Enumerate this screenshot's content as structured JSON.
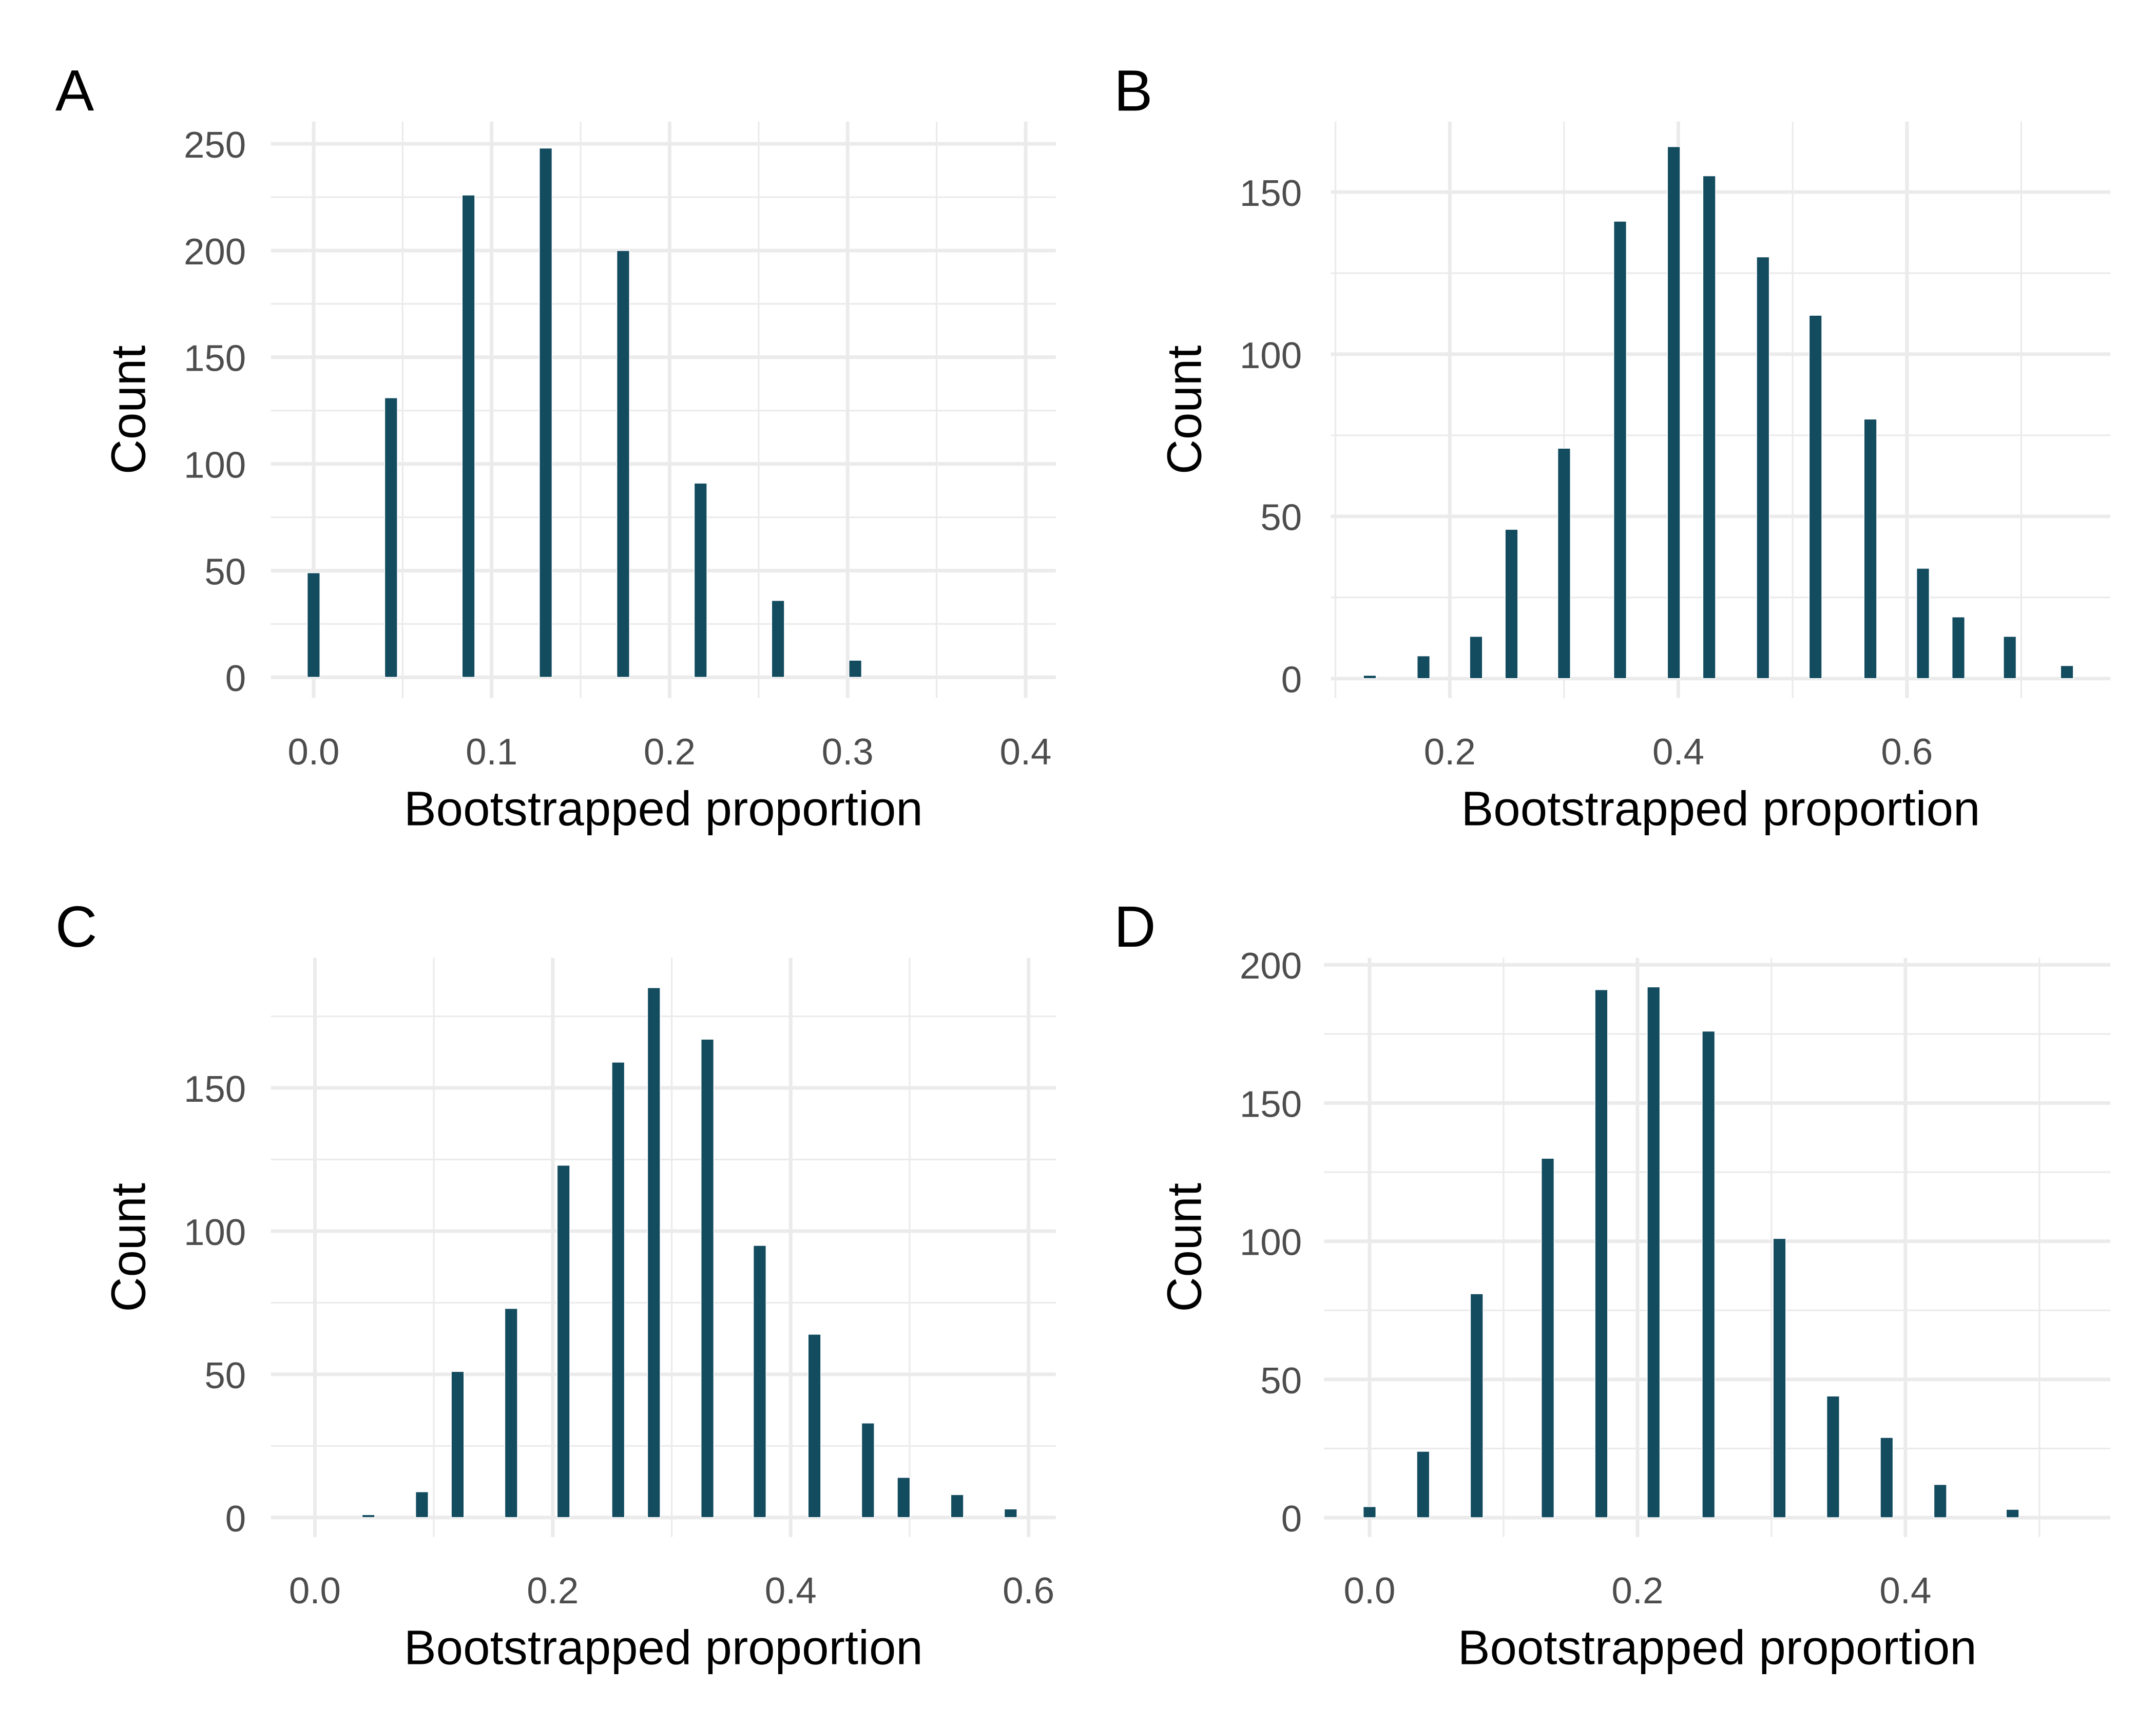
{
  "colors": {
    "bar": "#134b5f",
    "grid": "#ebebeb",
    "tick_text": "#4d4d4d"
  },
  "chart_data": [
    {
      "type": "bar",
      "tag": "A",
      "xlabel": "Bootstrapped proportion",
      "ylabel": "Count",
      "xlim": [
        -0.024,
        0.417
      ],
      "ylim": [
        -9.7,
        260.4
      ],
      "xticks": [
        0.0,
        0.1,
        0.2,
        0.3,
        0.4
      ],
      "xtick_labels": [
        "0.0",
        "0.1",
        "0.2",
        "0.3",
        "0.4"
      ],
      "xminor": [
        0.05,
        0.15,
        0.25,
        0.35
      ],
      "yticks": [
        0,
        50,
        100,
        150,
        200,
        250
      ],
      "ytick_labels": [
        "0",
        "50",
        "100",
        "150",
        "200",
        "250"
      ],
      "yminor": [
        25,
        75,
        125,
        175,
        225
      ],
      "x": [
        0.0,
        0.0435,
        0.087,
        0.1304,
        0.1739,
        0.2174,
        0.2609,
        0.3043
      ],
      "values": [
        49,
        131,
        226,
        248,
        200,
        91,
        36,
        8
      ]
    },
    {
      "type": "bar",
      "tag": "B",
      "xlabel": "Bootstrapped proportion",
      "ylabel": "Count",
      "xlim": [
        0.096,
        0.778
      ],
      "ylim": [
        -6,
        171.7
      ],
      "xticks": [
        0.2,
        0.4,
        0.6
      ],
      "xtick_labels": [
        "0.2",
        "0.4",
        "0.6"
      ],
      "xminor": [
        0.1,
        0.3,
        0.5,
        0.7
      ],
      "yticks": [
        0,
        50,
        100,
        150
      ],
      "ytick_labels": [
        "0",
        "50",
        "100",
        "150"
      ],
      "yminor": [
        25,
        75,
        125
      ],
      "x": [
        0.13,
        0.177,
        0.223,
        0.254,
        0.3,
        0.349,
        0.396,
        0.427,
        0.474,
        0.52,
        0.568,
        0.614,
        0.645,
        0.69,
        0.74
      ],
      "values": [
        1,
        7,
        13,
        46,
        71,
        141,
        164,
        155,
        130,
        112,
        80,
        34,
        19,
        13,
        4
      ]
    },
    {
      "type": "bar",
      "tag": "C",
      "xlabel": "Bootstrapped proportion",
      "ylabel": "Count",
      "xlim": [
        -0.037,
        0.623
      ],
      "ylim": [
        -6.8,
        195.4
      ],
      "xticks": [
        0.0,
        0.2,
        0.4,
        0.6
      ],
      "xtick_labels": [
        "0.0",
        "0.2",
        "0.4",
        "0.6"
      ],
      "xminor": [
        0.1,
        0.3,
        0.5
      ],
      "yticks": [
        0,
        50,
        100,
        150
      ],
      "ytick_labels": [
        "0",
        "50",
        "100",
        "150"
      ],
      "yminor": [
        25,
        75,
        125,
        175
      ],
      "x": [
        0.045,
        0.09,
        0.12,
        0.165,
        0.209,
        0.255,
        0.285,
        0.33,
        0.374,
        0.42,
        0.465,
        0.495,
        0.54,
        0.585
      ],
      "values": [
        1,
        9,
        51,
        73,
        123,
        159,
        185,
        167,
        95,
        64,
        33,
        14,
        8,
        3
      ]
    },
    {
      "type": "bar",
      "tag": "D",
      "xlabel": "Bootstrapped proportion",
      "ylabel": "Count",
      "xlim": [
        -0.034,
        0.553
      ],
      "ylim": [
        -7,
        202.5
      ],
      "xticks": [
        0.0,
        0.2,
        0.4
      ],
      "xtick_labels": [
        "0.0",
        "0.2",
        "0.4"
      ],
      "xminor": [
        0.1,
        0.3,
        0.5
      ],
      "yticks": [
        0,
        50,
        100,
        150,
        200
      ],
      "ytick_labels": [
        "0",
        "50",
        "100",
        "150",
        "200"
      ],
      "yminor": [
        25,
        75,
        125,
        175
      ],
      "x": [
        0.0,
        0.04,
        0.08,
        0.133,
        0.173,
        0.212,
        0.253,
        0.306,
        0.346,
        0.386,
        0.426,
        0.48
      ],
      "values": [
        4,
        24,
        81,
        130,
        191,
        192,
        176,
        101,
        44,
        29,
        12,
        3
      ]
    }
  ]
}
